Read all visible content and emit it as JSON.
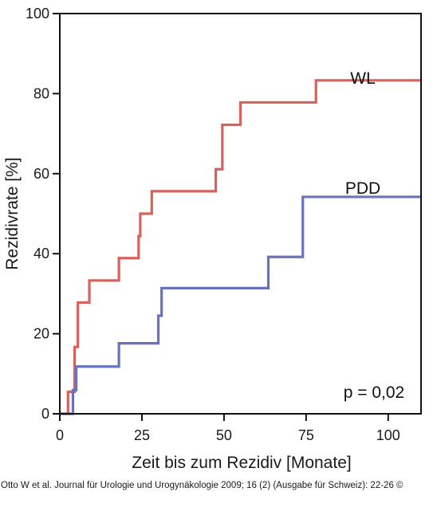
{
  "chart_data": {
    "type": "line",
    "step": true,
    "xlabel": "Zeit bis zum Rezidiv [Monate]",
    "ylabel": "Rezidivrate [%]",
    "xlim": [
      0,
      110
    ],
    "ylim": [
      0,
      100
    ],
    "xticks": [
      0,
      25,
      50,
      75,
      100
    ],
    "yticks": [
      0,
      20,
      40,
      60,
      80,
      100
    ],
    "grid": false,
    "series": [
      {
        "name": "WL",
        "color": "#d4635c",
        "x": [
          0,
          2.5,
          3.5,
          4.5,
          5.5,
          9,
          18,
          24,
          24.5,
          28,
          47.5,
          49.5,
          55,
          78,
          110
        ],
        "y": [
          0,
          5.5,
          5.5,
          16.7,
          27.8,
          33.3,
          38.9,
          44.4,
          50,
          55.6,
          61.1,
          72.2,
          77.8,
          83.3,
          83.3
        ]
      },
      {
        "name": "PDD",
        "color": "#6873bb",
        "x": [
          0,
          3,
          4,
          5,
          18,
          30,
          31,
          63.5,
          74,
          110
        ],
        "y": [
          0,
          0,
          5.9,
          11.8,
          17.6,
          24.5,
          31.4,
          39.2,
          54.2,
          54.2
        ]
      }
    ],
    "annotation": "p = 0,02"
  },
  "caption": "Otto W et al. Journal für Urologie und Urogynäkologie 2009; 16 (2) (Ausgabe für Schweiz): 22-26 ©"
}
